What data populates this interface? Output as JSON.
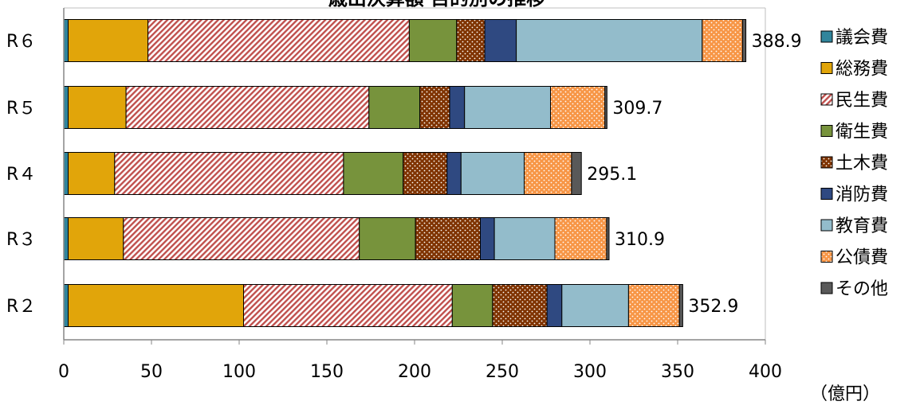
{
  "chart_data": {
    "type": "bar",
    "orientation": "horizontal",
    "stacked": true,
    "title": "歳出決算額 目的別の推移",
    "xlabel": "",
    "unit_label": "（億円）",
    "xlim": [
      0,
      400
    ],
    "x_ticks": [
      "0",
      "50",
      "100",
      "150",
      "200",
      "250",
      "300",
      "350",
      "400"
    ],
    "grid": false,
    "legend_position": "right",
    "categories": [
      "R６",
      "R５",
      "R４",
      "R３",
      "R２"
    ],
    "totals": [
      "388.9",
      "309.7",
      "295.1",
      "310.9",
      "352.9"
    ],
    "series": [
      {
        "name": "議会費",
        "color": "#31859c",
        "pattern": "solid",
        "values": [
          2.5,
          2.5,
          2.5,
          2.5,
          2.5
        ]
      },
      {
        "name": "総務費",
        "color": "#e1a50a",
        "pattern": "solid",
        "values": [
          45.5,
          33.0,
          26.5,
          31.5,
          100.0
        ]
      },
      {
        "name": "民生費",
        "color": "#c0504d",
        "pattern": "hatch",
        "values": [
          149.0,
          138.5,
          130.5,
          134.5,
          119.0
        ]
      },
      {
        "name": "衛生費",
        "color": "#77933c",
        "pattern": "solid",
        "values": [
          27.0,
          29.0,
          34.0,
          32.0,
          23.0
        ]
      },
      {
        "name": "土木費",
        "color": "#7f3300",
        "pattern": "dots",
        "values": [
          16.0,
          17.0,
          25.0,
          37.0,
          31.0
        ]
      },
      {
        "name": "消防費",
        "color": "#2f4981",
        "pattern": "solid",
        "values": [
          18.0,
          8.5,
          8.0,
          8.0,
          8.5
        ]
      },
      {
        "name": "教育費",
        "color": "#93bccb",
        "pattern": "solid",
        "values": [
          106.0,
          49.0,
          36.0,
          34.5,
          38.0
        ]
      },
      {
        "name": "公債費",
        "color": "#f79646",
        "pattern": "dots",
        "values": [
          23.0,
          31.0,
          27.0,
          29.5,
          29.0
        ]
      },
      {
        "name": "その他",
        "color": "#595959",
        "pattern": "solid",
        "values": [
          1.9,
          1.2,
          5.6,
          1.4,
          1.9
        ]
      }
    ]
  }
}
